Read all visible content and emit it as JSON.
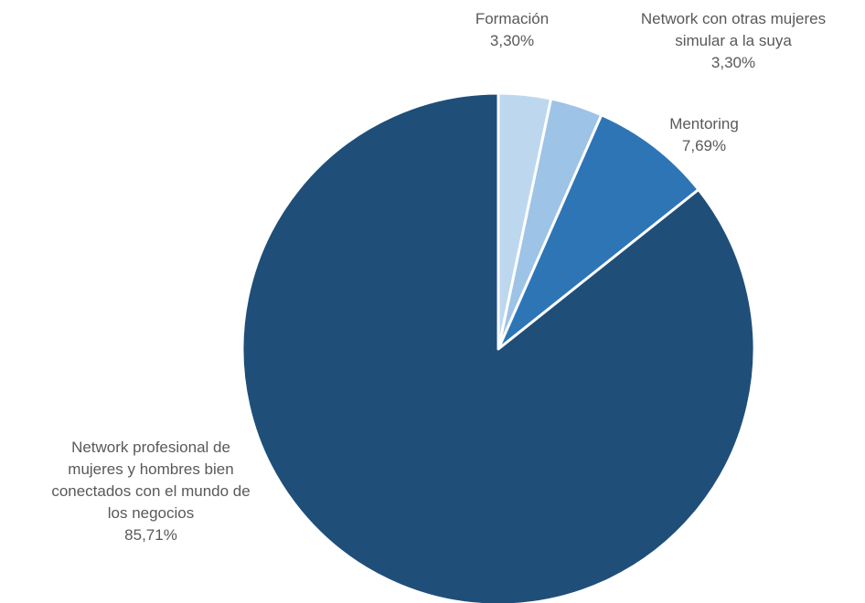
{
  "chart_data": {
    "type": "pie",
    "start_angle_deg": 0,
    "direction": "clockwise",
    "slices": [
      {
        "label": "Formación",
        "value": 3.3,
        "value_label": "3,30%",
        "color": "#BDD7EE"
      },
      {
        "label": "Network con otras mujeres simular a la suya",
        "value": 3.3,
        "value_label": "3,30%",
        "color": "#9DC3E6"
      },
      {
        "label": "Mentoring",
        "value": 7.69,
        "value_label": "7,69%",
        "color": "#2E75B6"
      },
      {
        "label": "Network profesional de mujeres y hombres bien conectados con el mundo de los negocios",
        "value": 85.71,
        "value_label": "85,71%",
        "color": "#1F4E79"
      }
    ]
  },
  "labels": {
    "formacion": {
      "lines": [
        "Formación"
      ]
    },
    "network_mujeres": {
      "lines": [
        "Network con otras mujeres",
        "simular a la suya"
      ]
    },
    "mentoring": {
      "lines": [
        "Mentoring"
      ]
    },
    "network_profesional": {
      "lines": [
        "Network profesional de",
        "mujeres y hombres bien",
        "conectados con el mundo de",
        "los negocios"
      ]
    }
  }
}
